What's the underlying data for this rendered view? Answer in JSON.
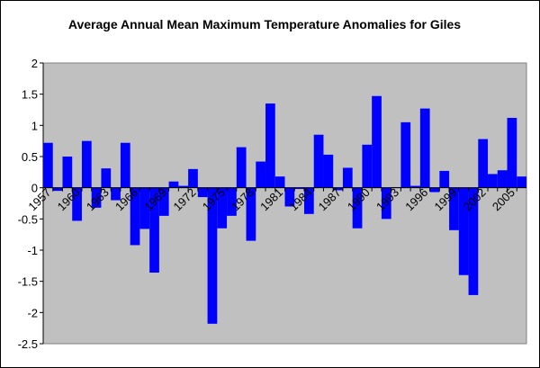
{
  "chart_data": {
    "type": "bar",
    "title": "Average Annual Mean Maximum Temperature Anomalies for Giles",
    "categories": [
      "1957",
      null,
      null,
      "1960",
      null,
      null,
      "1963",
      null,
      null,
      "1966",
      null,
      null,
      "1969",
      null,
      null,
      "1972",
      null,
      null,
      "1975",
      null,
      null,
      "1978",
      null,
      null,
      "1981",
      null,
      null,
      "1984",
      null,
      null,
      "1987",
      null,
      null,
      "1990",
      null,
      null,
      "1993",
      null,
      null,
      "1996",
      null,
      null,
      "1999",
      null,
      null,
      "2002",
      null,
      null,
      "2005",
      null
    ],
    "values": [
      0.72,
      -0.05,
      0.5,
      -0.53,
      0.75,
      -0.32,
      0.31,
      -0.2,
      0.72,
      -0.92,
      -0.66,
      -1.36,
      -0.45,
      0.1,
      0.03,
      0.3,
      -0.15,
      -2.18,
      -0.65,
      -0.45,
      0.65,
      -0.85,
      0.42,
      1.35,
      0.18,
      -0.3,
      -0.02,
      -0.42,
      0.85,
      0.53,
      -0.04,
      0.32,
      -0.65,
      0.69,
      1.47,
      -0.5,
      0.01,
      1.05,
      0.03,
      1.27,
      -0.07,
      0.27,
      -0.68,
      -1.4,
      -1.72,
      0.78,
      0.22,
      0.28,
      1.12,
      0.18
    ],
    "color": "#0000ff",
    "ylim": [
      -2.5,
      2
    ],
    "yticks": [
      2,
      1.5,
      1,
      0.5,
      0,
      -0.5,
      -1,
      -1.5,
      -2,
      -2.5
    ],
    "grid": false
  }
}
